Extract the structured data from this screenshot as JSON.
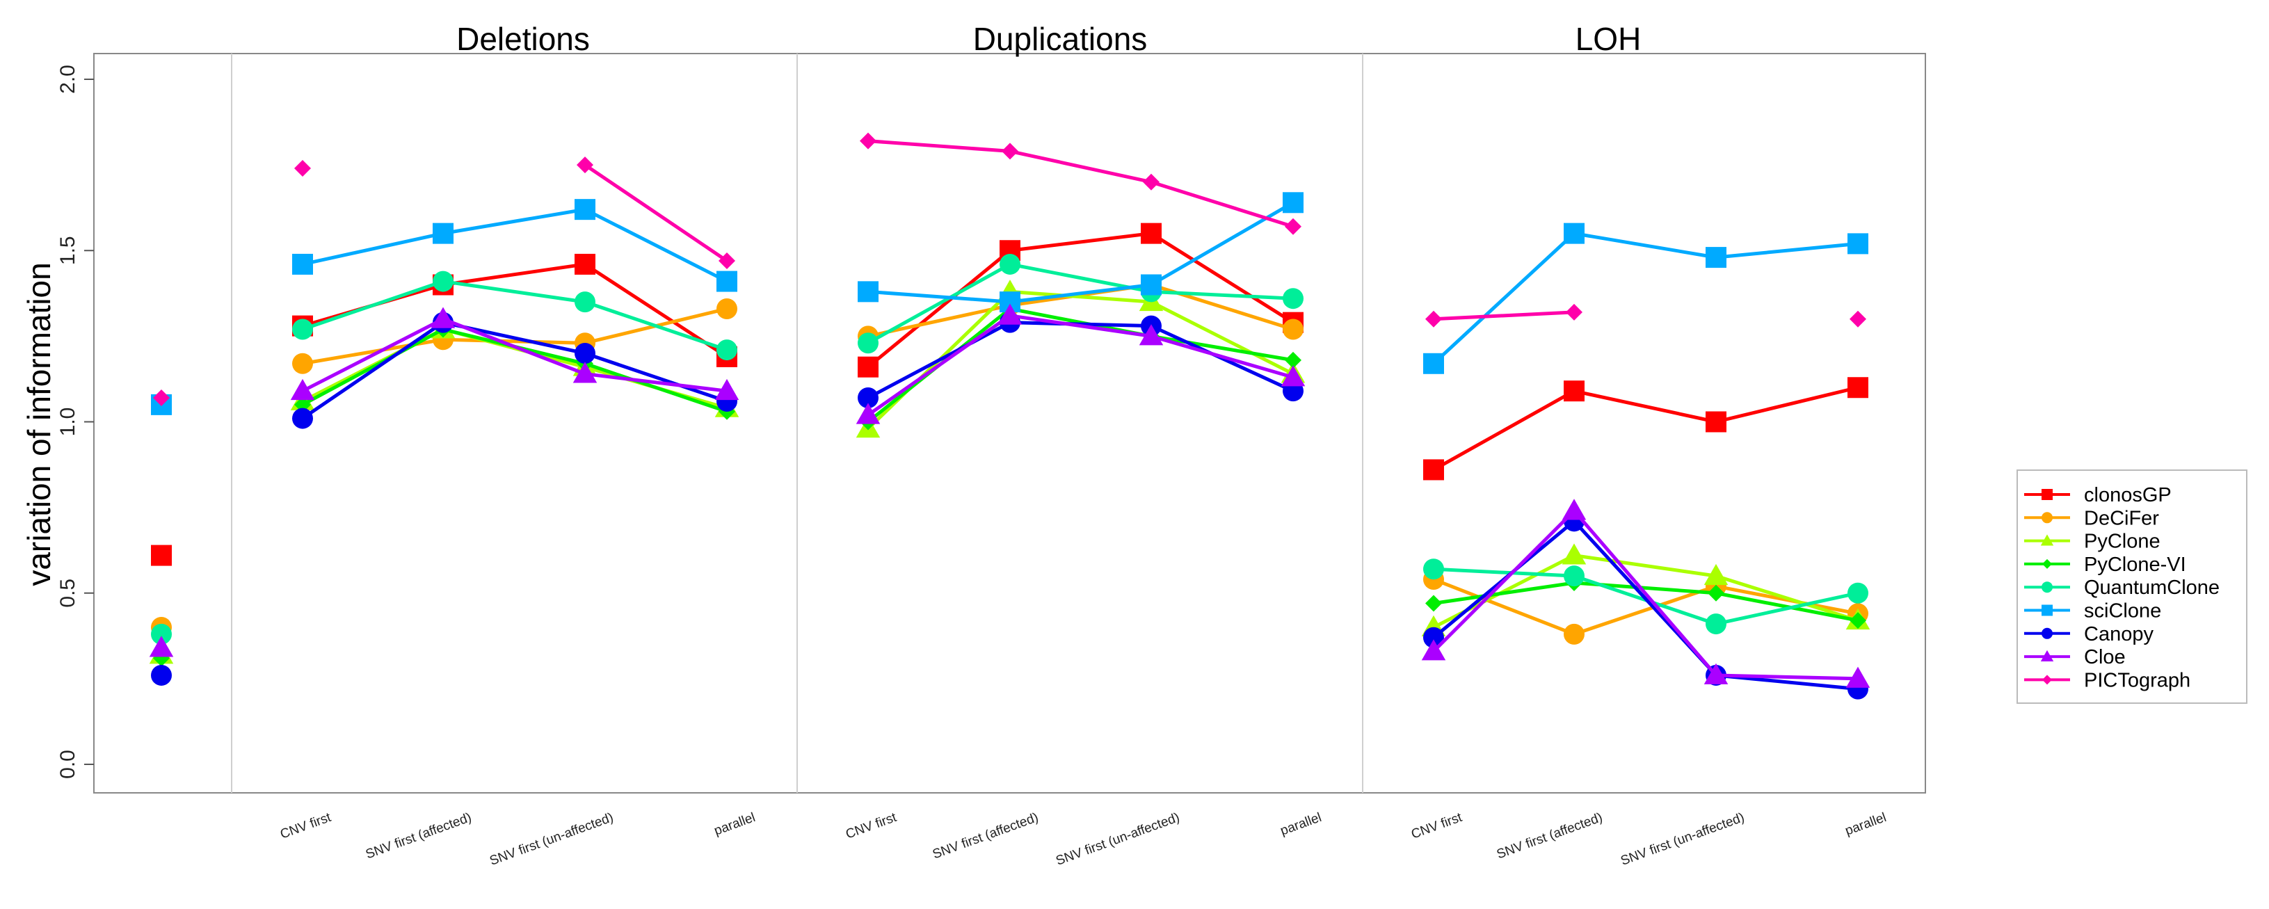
{
  "chart_data": {
    "type": "line",
    "ylabel": "variation of information",
    "ylim": [
      0,
      2
    ],
    "yticks": [
      "0.0",
      "0.5",
      "1.0",
      "1.5",
      "2.0"
    ],
    "ytick_values": [
      0,
      0.5,
      1.0,
      1.5,
      2.0
    ],
    "categories": [
      "CNV first",
      "SNV first (affected)",
      "SNV first (un-affected)",
      "parallel"
    ],
    "panels": [
      {
        "title": "Deletions"
      },
      {
        "title": "Duplications"
      },
      {
        "title": "LOH"
      }
    ],
    "legend_position": "right",
    "series": [
      {
        "name": "clonosGP",
        "color": "#ff0000",
        "marker": "square",
        "baseline": 0.61,
        "values": [
          [
            1.28,
            1.4,
            1.46,
            1.19
          ],
          [
            1.16,
            1.5,
            1.55,
            1.29
          ],
          [
            0.86,
            1.09,
            1.0,
            1.1
          ]
        ]
      },
      {
        "name": "DeCiFer",
        "color": "#ffa500",
        "marker": "circle",
        "baseline": 0.4,
        "values": [
          [
            1.17,
            1.24,
            1.23,
            1.33
          ],
          [
            1.25,
            1.34,
            1.4,
            1.27
          ],
          [
            0.54,
            0.38,
            0.52,
            0.44
          ]
        ]
      },
      {
        "name": "PyClone",
        "color": "#aaff00",
        "marker": "triangle",
        "baseline": 0.32,
        "values": [
          [
            1.06,
            1.27,
            1.16,
            1.04
          ],
          [
            0.98,
            1.38,
            1.35,
            1.14
          ],
          [
            0.4,
            0.61,
            0.55,
            0.42
          ]
        ]
      },
      {
        "name": "PyClone-VI",
        "color": "#00ee00",
        "marker": "diamond",
        "baseline": 0.31,
        "values": [
          [
            1.05,
            1.27,
            1.17,
            1.03
          ],
          [
            1.0,
            1.33,
            1.25,
            1.18
          ],
          [
            0.47,
            0.53,
            0.5,
            0.42
          ]
        ]
      },
      {
        "name": "QuantumClone",
        "color": "#00ee99",
        "marker": "circle",
        "baseline": 0.38,
        "values": [
          [
            1.27,
            1.41,
            1.35,
            1.21
          ],
          [
            1.23,
            1.46,
            1.38,
            1.36
          ],
          [
            0.57,
            0.55,
            0.41,
            0.5
          ]
        ]
      },
      {
        "name": "sciClone",
        "color": "#00aaff",
        "marker": "square",
        "baseline": 1.05,
        "values": [
          [
            1.46,
            1.55,
            1.62,
            1.41
          ],
          [
            1.38,
            1.35,
            1.4,
            1.64
          ],
          [
            1.17,
            1.55,
            1.48,
            1.52
          ]
        ]
      },
      {
        "name": "Canopy",
        "color": "#0000ee",
        "marker": "circle",
        "baseline": 0.26,
        "values": [
          [
            1.01,
            1.29,
            1.2,
            1.06
          ],
          [
            1.07,
            1.29,
            1.28,
            1.09
          ],
          [
            0.37,
            0.71,
            0.26,
            0.22
          ]
        ]
      },
      {
        "name": "Cloe",
        "color": "#aa00ff",
        "marker": "triangle",
        "baseline": 0.34,
        "values": [
          [
            1.09,
            1.3,
            1.14,
            1.09
          ],
          [
            1.02,
            1.31,
            1.25,
            1.13
          ],
          [
            0.33,
            0.74,
            0.26,
            0.25
          ]
        ]
      },
      {
        "name": "PICTograph",
        "color": "#ff00aa",
        "marker": "diamond",
        "baseline": 1.07,
        "values": [
          [
            1.74,
            null,
            1.75,
            1.47
          ],
          [
            1.82,
            1.79,
            1.7,
            1.57
          ],
          [
            1.3,
            1.32,
            null,
            1.3
          ]
        ]
      }
    ]
  }
}
